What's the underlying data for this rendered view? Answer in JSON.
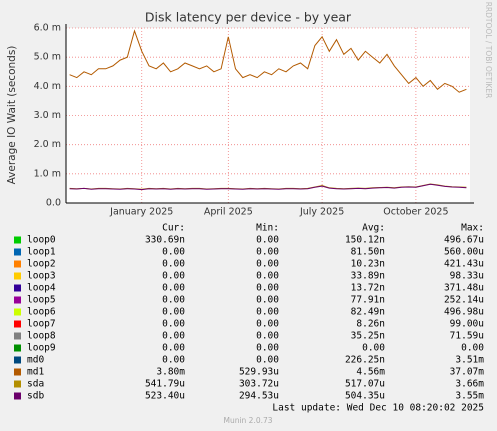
{
  "chart_data": {
    "type": "line",
    "title": "Disk latency per device - by year",
    "y_label": "Average IO Wait (seconds)",
    "side_text": "RRDTOOL / TOBI OETIKER",
    "categories": [
      null,
      null,
      null,
      null,
      null,
      null,
      null,
      null,
      null,
      null,
      "January 2025",
      null,
      null,
      null,
      null,
      null,
      null,
      null,
      null,
      null,
      null,
      null,
      "April 2025",
      null,
      null,
      null,
      null,
      null,
      null,
      null,
      null,
      null,
      null,
      null,
      null,
      "July 2025",
      null,
      null,
      null,
      null,
      null,
      null,
      null,
      null,
      null,
      null,
      null,
      null,
      "October 2025",
      null,
      null,
      null,
      null,
      null,
      null,
      null
    ],
    "ylim": [
      0,
      6
    ],
    "yticks": [
      {
        "value": 0,
        "label": "0.0"
      },
      {
        "value": 1,
        "label": "1.0 m"
      },
      {
        "value": 2,
        "label": "2.0 m"
      },
      {
        "value": 3,
        "label": "3.0 m"
      },
      {
        "value": 4,
        "label": "4.0 m"
      },
      {
        "value": 5,
        "label": "5.0 m"
      },
      {
        "value": 6,
        "label": "6.0 m"
      }
    ],
    "grid": true,
    "series": [
      {
        "name": "md1",
        "color": "#b35a00",
        "values": [
          4.4,
          4.3,
          4.5,
          4.4,
          4.6,
          4.6,
          4.7,
          4.9,
          5.0,
          5.9,
          5.2,
          4.7,
          4.6,
          4.8,
          4.5,
          4.6,
          4.8,
          4.7,
          4.6,
          4.7,
          4.5,
          4.6,
          5.7,
          4.6,
          4.3,
          4.4,
          4.3,
          4.5,
          4.4,
          4.6,
          4.5,
          4.7,
          4.8,
          4.6,
          5.4,
          5.7,
          5.2,
          5.6,
          5.1,
          5.3,
          4.9,
          5.2,
          5.0,
          4.8,
          5.1,
          4.7,
          4.4,
          4.1,
          4.3,
          4.0,
          4.2,
          3.9,
          4.1,
          4.0,
          3.8,
          3.9
        ]
      },
      {
        "name": "sda",
        "color": "#b38f00",
        "values": [
          0.5,
          0.49,
          0.5,
          0.48,
          0.5,
          0.5,
          0.49,
          0.48,
          0.5,
          0.49,
          0.47,
          0.5,
          0.49,
          0.5,
          0.48,
          0.5,
          0.49,
          0.5,
          0.5,
          0.48,
          0.49,
          0.5,
          0.5,
          0.49,
          0.48,
          0.5,
          0.49,
          0.5,
          0.49,
          0.48,
          0.5,
          0.5,
          0.49,
          0.5,
          0.55,
          0.6,
          0.52,
          0.5,
          0.49,
          0.5,
          0.51,
          0.5,
          0.52,
          0.53,
          0.54,
          0.52,
          0.55,
          0.56,
          0.55,
          0.6,
          0.65,
          0.62,
          0.58,
          0.56,
          0.55,
          0.54
        ]
      },
      {
        "name": "sdb",
        "color": "#6b006b",
        "values": [
          0.49,
          0.48,
          0.5,
          0.47,
          0.49,
          0.49,
          0.48,
          0.47,
          0.49,
          0.48,
          0.46,
          0.49,
          0.48,
          0.49,
          0.47,
          0.49,
          0.48,
          0.49,
          0.49,
          0.47,
          0.48,
          0.49,
          0.49,
          0.48,
          0.47,
          0.49,
          0.48,
          0.49,
          0.48,
          0.47,
          0.49,
          0.49,
          0.48,
          0.49,
          0.54,
          0.58,
          0.51,
          0.49,
          0.48,
          0.49,
          0.5,
          0.49,
          0.51,
          0.52,
          0.53,
          0.51,
          0.54,
          0.55,
          0.54,
          0.59,
          0.64,
          0.61,
          0.57,
          0.55,
          0.54,
          0.52
        ]
      }
    ]
  },
  "legend_table": {
    "headers": [
      "Cur:",
      "Min:",
      "Avg:",
      "Max:"
    ],
    "rows": [
      {
        "name": "loop0",
        "color": "#00cc00",
        "cells": [
          "330.69n",
          "0.00",
          "150.12n",
          "496.67u"
        ]
      },
      {
        "name": "loop1",
        "color": "#0066b3",
        "cells": [
          "0.00",
          "0.00",
          "81.50n",
          "560.00u"
        ]
      },
      {
        "name": "loop2",
        "color": "#ff8000",
        "cells": [
          "0.00",
          "0.00",
          "10.23n",
          "421.43u"
        ]
      },
      {
        "name": "loop3",
        "color": "#ffcc00",
        "cells": [
          "0.00",
          "0.00",
          "33.89n",
          "98.33u"
        ]
      },
      {
        "name": "loop4",
        "color": "#330099",
        "cells": [
          "0.00",
          "0.00",
          "13.72n",
          "371.48u"
        ]
      },
      {
        "name": "loop5",
        "color": "#990099",
        "cells": [
          "0.00",
          "0.00",
          "77.91n",
          "252.14u"
        ]
      },
      {
        "name": "loop6",
        "color": "#ccff00",
        "cells": [
          "0.00",
          "0.00",
          "82.49n",
          "496.98u"
        ]
      },
      {
        "name": "loop7",
        "color": "#ff0000",
        "cells": [
          "0.00",
          "0.00",
          "8.26n",
          "99.00u"
        ]
      },
      {
        "name": "loop8",
        "color": "#808080",
        "cells": [
          "0.00",
          "0.00",
          "35.25n",
          "71.59u"
        ]
      },
      {
        "name": "loop9",
        "color": "#008f00",
        "cells": [
          "0.00",
          "0.00",
          "0.00",
          "0.00"
        ]
      },
      {
        "name": "md0",
        "color": "#00487d",
        "cells": [
          "0.00",
          "0.00",
          "226.25n",
          "3.51m"
        ]
      },
      {
        "name": "md1",
        "color": "#b35a00",
        "cells": [
          "3.80m",
          "529.93u",
          "4.56m",
          "37.07m"
        ]
      },
      {
        "name": "sda",
        "color": "#b38f00",
        "cells": [
          "541.79u",
          "303.72u",
          "517.07u",
          "3.66m"
        ]
      },
      {
        "name": "sdb",
        "color": "#6b006b",
        "cells": [
          "523.40u",
          "294.53u",
          "504.35u",
          "3.55m"
        ]
      }
    ]
  },
  "footer": {
    "last_update": "Last update: Wed Dec 10 08:20:02 2025",
    "version": "Munin 2.0.73"
  }
}
